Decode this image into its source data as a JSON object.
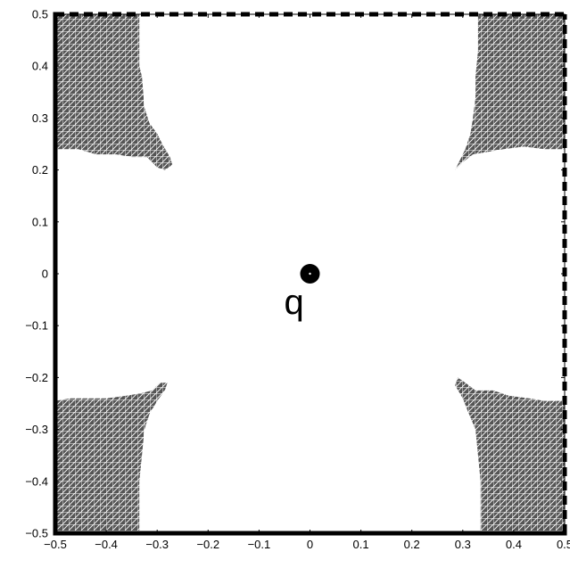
{
  "chart_data": {
    "type": "scatter",
    "title": "",
    "xlabel": "",
    "ylabel": "",
    "xlim": [
      -0.5,
      0.5
    ],
    "ylim": [
      -0.5,
      0.5
    ],
    "x_ticks": [
      "−0.5",
      "−0.4",
      "−0.3",
      "−0.2",
      "−0.1",
      "0",
      "0.1",
      "0.2",
      "0.3",
      "0.4",
      "0.5"
    ],
    "y_ticks": [
      "0.5",
      "0.4",
      "0.3",
      "0.2",
      "0.1",
      "0",
      "−0.1",
      "−0.2",
      "−0.3",
      "−0.4",
      "−0.5"
    ],
    "x_tick_values": [
      -0.5,
      -0.4,
      -0.3,
      -0.2,
      -0.1,
      0,
      0.1,
      0.2,
      0.3,
      0.4,
      0.5
    ],
    "y_tick_values": [
      0.5,
      0.4,
      0.3,
      0.2,
      0.1,
      0,
      -0.1,
      -0.2,
      -0.3,
      -0.4,
      -0.5
    ],
    "grid": false,
    "boundary": {
      "solid_edges": [
        "left",
        "bottom"
      ],
      "dashed_edges": [
        "top",
        "right"
      ],
      "color": "#000000"
    },
    "point": {
      "label": "q",
      "x": 0.0,
      "y": 0.0,
      "color": "#000000"
    },
    "regions": [
      {
        "name": "top-left-region",
        "color": "#555555",
        "polygon": [
          [
            -0.5,
            0.5
          ],
          [
            -0.335,
            0.5
          ],
          [
            -0.335,
            0.4
          ],
          [
            -0.33,
            0.38
          ],
          [
            -0.325,
            0.32
          ],
          [
            -0.315,
            0.29
          ],
          [
            -0.3,
            0.27
          ],
          [
            -0.29,
            0.25
          ],
          [
            -0.275,
            0.225
          ],
          [
            -0.27,
            0.21
          ],
          [
            -0.285,
            0.2
          ],
          [
            -0.3,
            0.205
          ],
          [
            -0.32,
            0.225
          ],
          [
            -0.35,
            0.225
          ],
          [
            -0.38,
            0.23
          ],
          [
            -0.42,
            0.23
          ],
          [
            -0.455,
            0.24
          ],
          [
            -0.5,
            0.24
          ]
        ]
      },
      {
        "name": "top-right-region",
        "color": "#555555",
        "polygon": [
          [
            0.5,
            0.5
          ],
          [
            0.33,
            0.5
          ],
          [
            0.33,
            0.43
          ],
          [
            0.325,
            0.38
          ],
          [
            0.325,
            0.34
          ],
          [
            0.32,
            0.3
          ],
          [
            0.315,
            0.27
          ],
          [
            0.305,
            0.24
          ],
          [
            0.295,
            0.22
          ],
          [
            0.285,
            0.2
          ],
          [
            0.3,
            0.215
          ],
          [
            0.32,
            0.23
          ],
          [
            0.35,
            0.235
          ],
          [
            0.38,
            0.24
          ],
          [
            0.42,
            0.245
          ],
          [
            0.46,
            0.24
          ],
          [
            0.5,
            0.24
          ]
        ]
      },
      {
        "name": "bottom-left-region",
        "color": "#555555",
        "polygon": [
          [
            -0.5,
            -0.5
          ],
          [
            -0.335,
            -0.5
          ],
          [
            -0.335,
            -0.4
          ],
          [
            -0.33,
            -0.35
          ],
          [
            -0.325,
            -0.3
          ],
          [
            -0.315,
            -0.27
          ],
          [
            -0.3,
            -0.245
          ],
          [
            -0.285,
            -0.225
          ],
          [
            -0.28,
            -0.21
          ],
          [
            -0.295,
            -0.21
          ],
          [
            -0.31,
            -0.225
          ],
          [
            -0.33,
            -0.23
          ],
          [
            -0.36,
            -0.235
          ],
          [
            -0.4,
            -0.24
          ],
          [
            -0.44,
            -0.24
          ],
          [
            -0.47,
            -0.24
          ],
          [
            -0.5,
            -0.245
          ]
        ]
      },
      {
        "name": "bottom-right-region",
        "color": "#555555",
        "polygon": [
          [
            0.5,
            -0.5
          ],
          [
            0.335,
            -0.5
          ],
          [
            0.335,
            -0.4
          ],
          [
            0.33,
            -0.35
          ],
          [
            0.325,
            -0.3
          ],
          [
            0.31,
            -0.265
          ],
          [
            0.3,
            -0.24
          ],
          [
            0.285,
            -0.215
          ],
          [
            0.29,
            -0.2
          ],
          [
            0.305,
            -0.21
          ],
          [
            0.325,
            -0.225
          ],
          [
            0.36,
            -0.225
          ],
          [
            0.39,
            -0.235
          ],
          [
            0.43,
            -0.24
          ],
          [
            0.46,
            -0.245
          ],
          [
            0.5,
            -0.245
          ]
        ]
      }
    ]
  }
}
